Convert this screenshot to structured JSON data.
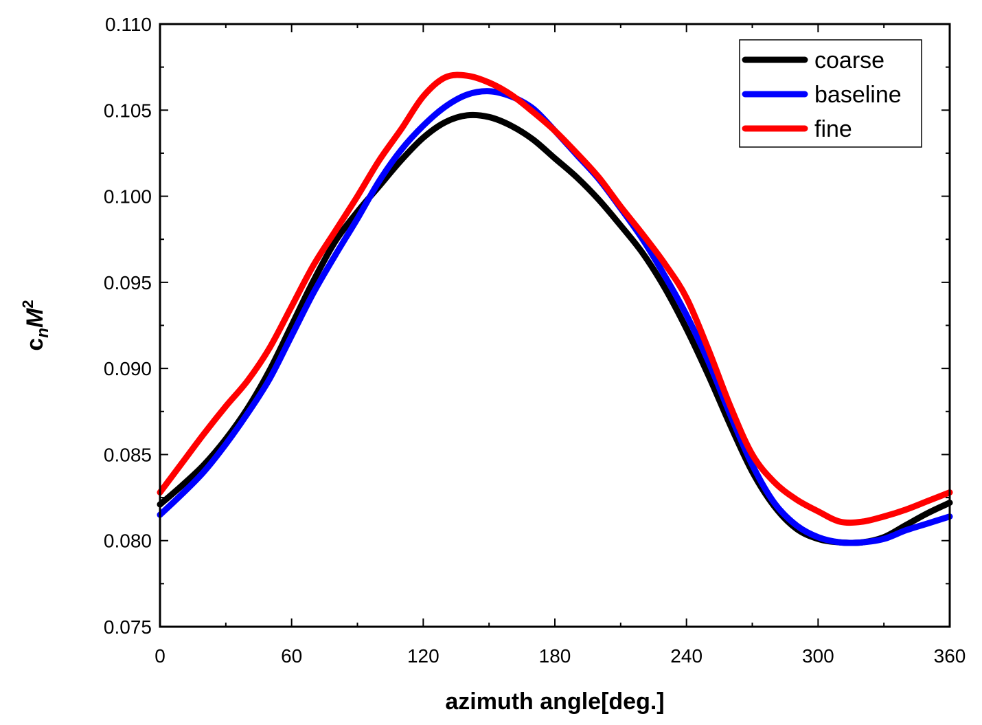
{
  "chart_data": {
    "type": "line",
    "title": "",
    "xlabel": "azimuth angle[deg.]",
    "ylabel": {
      "base": "c",
      "sub": "n",
      "mid": "M",
      "sup": "2"
    },
    "xlim": [
      0,
      360
    ],
    "ylim": [
      0.075,
      0.11
    ],
    "xticks": [
      0,
      60,
      120,
      180,
      240,
      300,
      360
    ],
    "yticks": [
      0.075,
      0.08,
      0.085,
      0.09,
      0.095,
      0.1,
      0.105,
      0.11
    ],
    "xtick_labels": [
      "0",
      "60",
      "120",
      "180",
      "240",
      "300",
      "360"
    ],
    "ytick_labels": [
      "0.075",
      "0.080",
      "0.085",
      "0.090",
      "0.095",
      "0.100",
      "0.105",
      "0.110"
    ],
    "grid": false,
    "legend_position": "top-right",
    "series": [
      {
        "name": "coarse",
        "color": "#000000",
        "x": [
          0,
          10,
          20,
          30,
          40,
          50,
          60,
          70,
          80,
          90,
          100,
          110,
          120,
          130,
          140,
          150,
          160,
          170,
          180,
          190,
          200,
          210,
          220,
          230,
          240,
          250,
          260,
          270,
          280,
          290,
          300,
          310,
          320,
          330,
          340,
          350,
          360
        ],
        "values": [
          0.0821,
          0.0832,
          0.0844,
          0.0859,
          0.0877,
          0.0899,
          0.0925,
          0.0951,
          0.0974,
          0.0991,
          0.1006,
          0.1021,
          0.1034,
          0.1043,
          0.1047,
          0.1046,
          0.1041,
          0.1033,
          0.1022,
          0.1011,
          0.0998,
          0.0983,
          0.0967,
          0.0947,
          0.0923,
          0.0896,
          0.0867,
          0.084,
          0.082,
          0.0807,
          0.0801,
          0.0799,
          0.0799,
          0.0802,
          0.0809,
          0.0816,
          0.0822
        ]
      },
      {
        "name": "baseline",
        "color": "#0000ff",
        "x": [
          0,
          10,
          20,
          30,
          40,
          50,
          60,
          70,
          80,
          90,
          100,
          110,
          120,
          130,
          140,
          150,
          160,
          170,
          180,
          190,
          200,
          210,
          220,
          230,
          240,
          250,
          260,
          270,
          280,
          290,
          300,
          310,
          320,
          330,
          340,
          350,
          360
        ],
        "values": [
          0.0815,
          0.0827,
          0.084,
          0.0856,
          0.0874,
          0.0894,
          0.0919,
          0.0944,
          0.0966,
          0.0987,
          0.1009,
          0.1027,
          0.1041,
          0.1052,
          0.1059,
          0.1061,
          0.1058,
          0.1051,
          0.1038,
          0.1024,
          0.101,
          0.0993,
          0.0975,
          0.0954,
          0.0931,
          0.0904,
          0.0873,
          0.0844,
          0.0822,
          0.0809,
          0.0802,
          0.0799,
          0.0799,
          0.0801,
          0.0806,
          0.081,
          0.0814
        ]
      },
      {
        "name": "fine",
        "color": "#ff0000",
        "x": [
          0,
          10,
          20,
          30,
          40,
          50,
          60,
          70,
          80,
          90,
          100,
          110,
          120,
          130,
          140,
          150,
          160,
          170,
          180,
          190,
          200,
          210,
          220,
          230,
          240,
          250,
          260,
          270,
          280,
          290,
          300,
          310,
          320,
          330,
          340,
          350,
          360
        ],
        "values": [
          0.0828,
          0.0845,
          0.0862,
          0.0878,
          0.0893,
          0.0912,
          0.0936,
          0.096,
          0.098,
          0.1,
          0.1021,
          0.1039,
          0.1058,
          0.1069,
          0.107,
          0.1066,
          0.1059,
          0.1049,
          0.1038,
          0.1025,
          0.1011,
          0.0994,
          0.0978,
          0.0961,
          0.0941,
          0.0911,
          0.0878,
          0.085,
          0.0834,
          0.0824,
          0.0817,
          0.0811,
          0.0811,
          0.0814,
          0.0818,
          0.0823,
          0.0828
        ]
      }
    ]
  }
}
